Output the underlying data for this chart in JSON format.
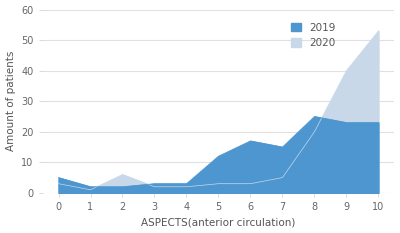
{
  "x": [
    0,
    1,
    2,
    3,
    4,
    5,
    6,
    7,
    8,
    9,
    10
  ],
  "y_2019": [
    5,
    2,
    2,
    3,
    3,
    12,
    17,
    15,
    25,
    23,
    23
  ],
  "y_2020": [
    3,
    1,
    6,
    2,
    2,
    3,
    3,
    5,
    20,
    40,
    53
  ],
  "color_2019": "#4e96d0",
  "color_2020": "#c8d8e8",
  "ylabel": "Amount of patients",
  "xlabel": "ASPECTS(anterior circulation)",
  "ylim": [
    0,
    60
  ],
  "yticks": [
    0,
    10,
    20,
    30,
    40,
    50,
    60
  ],
  "xticks": [
    0,
    1,
    2,
    3,
    4,
    5,
    6,
    7,
    8,
    9,
    10
  ],
  "legend_labels": [
    "2019",
    "2020"
  ],
  "background_color": "#ffffff",
  "grid_color": "#e0e0e0"
}
